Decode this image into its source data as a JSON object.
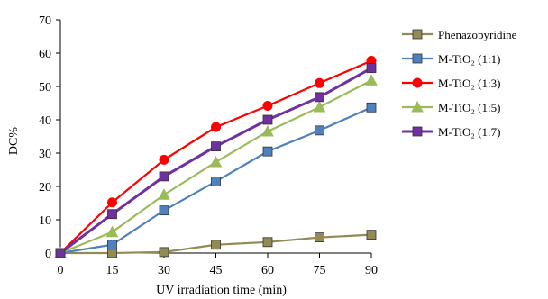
{
  "chart_data": {
    "type": "line",
    "title": "",
    "xlabel": "UV irradiation time  (min)",
    "ylabel": "DC%",
    "x": [
      0,
      15,
      30,
      45,
      60,
      75,
      90
    ],
    "xlim": [
      0,
      90
    ],
    "ylim": [
      0,
      70
    ],
    "yticks": [
      0,
      10,
      20,
      30,
      40,
      50,
      60,
      70
    ],
    "grid": false,
    "legend_position": "right",
    "series": [
      {
        "name": "Phenazopyridine",
        "color": "#948a54",
        "marker": "square",
        "values": [
          0,
          0,
          0.3,
          2.5,
          3.3,
          4.7,
          5.5
        ]
      },
      {
        "name": "M-TiO₂  (1:1)",
        "color": "#4f81bd",
        "marker": "square",
        "values": [
          0,
          2.5,
          12.8,
          21.5,
          30.5,
          36.8,
          43.7
        ]
      },
      {
        "name": "M-TiO₂  (1:3)",
        "color": "#ff0000",
        "marker": "circle",
        "values": [
          0,
          15.2,
          28,
          37.8,
          44.2,
          51,
          57.7
        ]
      },
      {
        "name": "M-TiO₂  (1:5)",
        "color": "#9bbb59",
        "marker": "triangle",
        "values": [
          0,
          6.3,
          17.5,
          27.3,
          36.5,
          43.8,
          51.8
        ]
      },
      {
        "name": "M-TiO₂  (1:7)",
        "color": "#7030a0",
        "marker": "square",
        "values": [
          0,
          11.7,
          23,
          32,
          40,
          46.8,
          55.5
        ]
      }
    ]
  }
}
